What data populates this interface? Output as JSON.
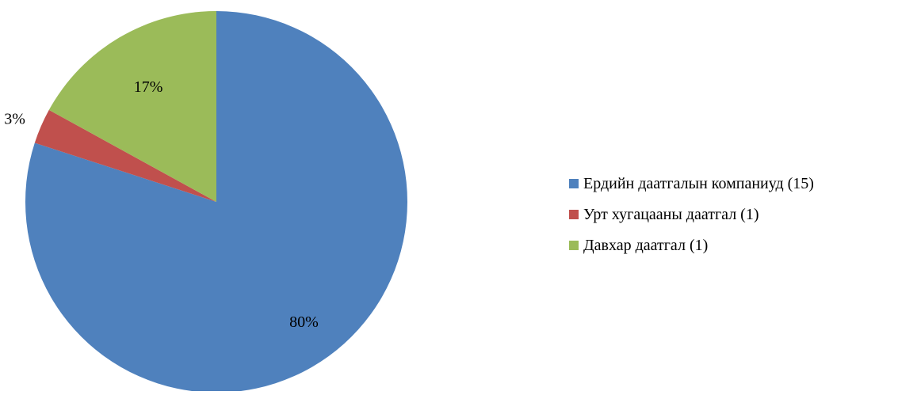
{
  "chart_data": {
    "type": "pie",
    "title": "",
    "categories": [
      "Ердийн даатгалын компаниуд (15)",
      "Урт хугацааны даатгал (1)",
      "Давхар даатгал (1)"
    ],
    "values": [
      80,
      3,
      17
    ],
    "value_labels": [
      "80%",
      "3%",
      "17%"
    ],
    "colors": [
      "#4f81bd",
      "#c0504d",
      "#9bbb59"
    ],
    "start": "12 o'clock",
    "direction": "clockwise",
    "legend": "right"
  }
}
